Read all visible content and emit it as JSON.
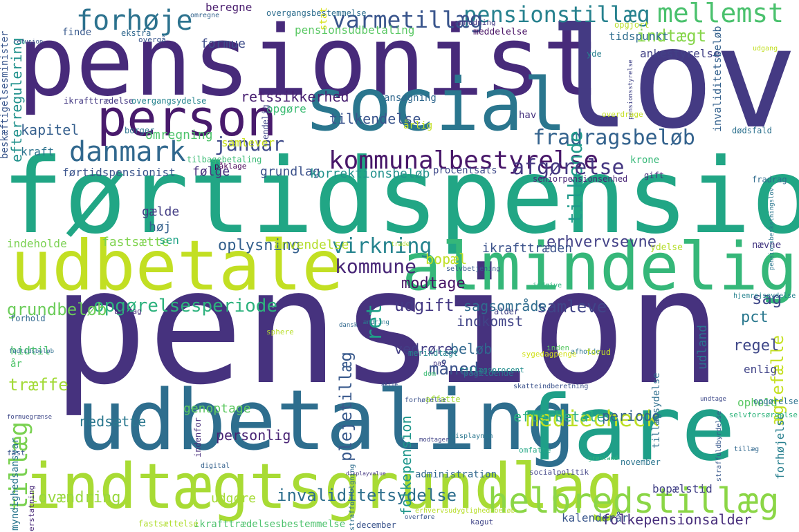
{
  "wordcloud": {
    "words": [
      {
        "text": "pension",
        "color": "#46327e"
      },
      {
        "text": "førtidspension",
        "color": "#21a685"
      },
      {
        "text": "pensionist",
        "color": "#472a7a"
      },
      {
        "text": "lov",
        "color": "#443a83"
      },
      {
        "text": "udbetaling",
        "color": "#2e6e8e"
      },
      {
        "text": "fare",
        "color": "#1f9f88"
      },
      {
        "text": "social",
        "color": "#2a768e"
      },
      {
        "text": "udbetale",
        "color": "#c2df23"
      },
      {
        "text": "almindelig",
        "color": "#35b779"
      },
      {
        "text": "indtægtsgrundlag",
        "color": "#a8db34"
      },
      {
        "text": "person",
        "color": "#481a6c"
      },
      {
        "text": "helbredstillæg",
        "color": "#8bd646"
      },
      {
        "text": "danmark",
        "color": "#31688e"
      },
      {
        "text": "forhøje",
        "color": "#2c728e"
      },
      {
        "text": "kommunalbestyrelse",
        "color": "#481769"
      },
      {
        "text": "mellemst",
        "color": "#4ac16d"
      },
      {
        "text": "pensionstillæg",
        "color": "#26818e"
      },
      {
        "text": "varmetillæg",
        "color": "#39558c"
      },
      {
        "text": "fradragsbeløb",
        "color": "#33628d"
      },
      {
        "text": "tilkende",
        "color": "#1f9a8a"
      },
      {
        "text": "afgørelse",
        "color": "#453781"
      },
      {
        "text": "indtægt",
        "color": "#86d549"
      },
      {
        "text": "januar",
        "color": "#3e4a89"
      },
      {
        "text": "virkning",
        "color": "#25838e"
      },
      {
        "text": "kommune",
        "color": "#482677"
      },
      {
        "text": "opgørelsesperiode",
        "color": "#2db27d"
      },
      {
        "text": "grundbeløb",
        "color": "#6ccd5a"
      },
      {
        "text": "tillæg",
        "color": "#7ad151"
      },
      {
        "text": "plejetillæg",
        "color": "#38598c"
      },
      {
        "text": "ret",
        "color": "#1fa088"
      },
      {
        "text": "udgift",
        "color": "#443983"
      },
      {
        "text": "samleve",
        "color": "#404588"
      },
      {
        "text": "sag",
        "color": "#3f4889"
      },
      {
        "text": "mediecheck",
        "color": "#bddf26"
      },
      {
        "text": "invaliditetsydelse",
        "color": "#2e6f8e"
      },
      {
        "text": "lovændring",
        "color": "#98d83e"
      },
      {
        "text": "måned",
        "color": "#3b528b"
      },
      {
        "text": "ægtefælle",
        "color": "#c5e021"
      },
      {
        "text": "modtage",
        "color": "#471365"
      },
      {
        "text": "sagsområde",
        "color": "#2f6c8e"
      },
      {
        "text": "erhvervsevne",
        "color": "#424086"
      },
      {
        "text": "bopæl",
        "color": "#c0df25"
      },
      {
        "text": "efterregulering",
        "color": "#21918c"
      },
      {
        "text": "oplysning",
        "color": "#34608d"
      },
      {
        "text": "fastsætte",
        "color": "#7fd34e"
      },
      {
        "text": "træffe",
        "color": "#a2da37"
      },
      {
        "text": "folkepension",
        "color": "#1f968b"
      },
      {
        "text": "efterbetale",
        "color": "#28ae80"
      },
      {
        "text": "regel",
        "color": "#3f4788"
      },
      {
        "text": "pct",
        "color": "#2a788e"
      },
      {
        "text": "beløb",
        "color": "#31678e"
      },
      {
        "text": "vedrøre",
        "color": "#433e85"
      },
      {
        "text": "folkepensionsalder",
        "color": "#472d7b"
      },
      {
        "text": "personlig",
        "color": "#482374"
      },
      {
        "text": "nedsætte",
        "color": "#2a778e"
      },
      {
        "text": "genoptage",
        "color": "#5ec962"
      },
      {
        "text": "periode",
        "color": "#33638d"
      },
      {
        "text": "tilkendelse",
        "color": "#3a548c"
      },
      {
        "text": "retssikkerhed",
        "color": "#482071"
      },
      {
        "text": "indkomst",
        "color": "#414487"
      },
      {
        "text": "høj",
        "color": "#34618d"
      },
      {
        "text": "gælde",
        "color": "#433d84"
      },
      {
        "text": "følge",
        "color": "#472f7d"
      },
      {
        "text": "grundlag",
        "color": "#3b518b"
      },
      {
        "text": "kapitel",
        "color": "#355f8d"
      },
      {
        "text": "omregning",
        "color": "#4ec36b"
      },
      {
        "text": "kraft",
        "color": "#2c738e"
      },
      {
        "text": "førtidspensionist",
        "color": "#3a548c"
      },
      {
        "text": "formue",
        "color": "#3e4c8a"
      },
      {
        "text": "beregne",
        "color": "#481b6d"
      },
      {
        "text": "korrektionsbeløb",
        "color": "#21918c"
      },
      {
        "text": "ikrafttræden",
        "color": "#3b528b"
      },
      {
        "text": "anvendelse",
        "color": "#b5de2b"
      },
      {
        "text": "pensionsudbetaling",
        "color": "#5ac864"
      },
      {
        "text": "tidspunkt",
        "color": "#2e6d8e"
      },
      {
        "text": "ankestyrelse",
        "color": "#424186"
      },
      {
        "text": "udland",
        "color": "#2c718e"
      },
      {
        "text": "enlig",
        "color": "#404387"
      },
      {
        "text": "ophold",
        "color": "#5ac864"
      },
      {
        "text": "udgøre",
        "color": "#a5db36"
      },
      {
        "text": "samlever",
        "color": "#c8e020"
      },
      {
        "text": "opgøre",
        "color": "#3dbc74"
      },
      {
        "text": "sen",
        "color": "#20a386"
      },
      {
        "text": "bopælstid",
        "color": "#424186"
      },
      {
        "text": "forhøjelse",
        "color": "#277f8e"
      },
      {
        "text": "invaliditetsbeløb",
        "color": "#34618d"
      },
      {
        "text": "beskæftigelsesminister",
        "color": "#39568c"
      },
      {
        "text": "indeholde",
        "color": "#7ad151"
      },
      {
        "text": "hidtil",
        "color": "#4ac16d"
      },
      {
        "text": "år",
        "color": "#50c46a"
      },
      {
        "text": "kalenderår",
        "color": "#39568c"
      },
      {
        "text": "administration",
        "color": "#31688e"
      },
      {
        "text": "myndighedsansvar",
        "color": "#2a768e"
      },
      {
        "text": "tillægsydelse",
        "color": "#2e6f8e"
      },
      {
        "text": "ikrafttrædelsesbestemmelse",
        "color": "#4cc26c"
      },
      {
        "text": "fastsættelse",
        "color": "#b0dd2f"
      },
      {
        "text": "december",
        "color": "#3a548c"
      },
      {
        "text": "november",
        "color": "#2b758e"
      },
      {
        "text": "stat",
        "color": "#d8e219"
      },
      {
        "text": "finde",
        "color": "#38598c"
      },
      {
        "text": "ekstra",
        "color": "#31688e"
      },
      {
        "text": "meddelelse",
        "color": "#471063"
      },
      {
        "text": "opgjort",
        "color": "#b8de29"
      },
      {
        "text": "yde",
        "color": "#277f8e"
      },
      {
        "text": "årlig",
        "color": "#c2df23"
      },
      {
        "text": "ansøgning",
        "color": "#31688e"
      },
      {
        "text": "krone",
        "color": "#37b878"
      },
      {
        "text": "procentsats",
        "color": "#3e4989"
      },
      {
        "text": "seniorpensionsenhed",
        "color": "#482475"
      },
      {
        "text": "tilbagebetaling",
        "color": "#3bbb75"
      },
      {
        "text": "borger",
        "color": "#2b748e"
      },
      {
        "text": "hav",
        "color": "#46337e"
      },
      {
        "text": "ydelse",
        "color": "#b5de2b"
      },
      {
        "text": "nævne",
        "color": "#453882"
      },
      {
        "text": "dødsfald",
        "color": "#2c718e"
      },
      {
        "text": "fradrag",
        "color": "#2f6b8e"
      },
      {
        "text": "gift",
        "color": "#472c7a"
      },
      {
        "text": "overgå",
        "color": "#39568c"
      },
      {
        "text": "overgangsbestemmelse",
        "color": "#2e6e8e"
      },
      {
        "text": "refusion",
        "color": "#3a538b"
      },
      {
        "text": "omregne",
        "color": "#33638d"
      },
      {
        "text": "anmodning",
        "color": "#453882"
      },
      {
        "text": "udgang",
        "color": "#c2df23"
      },
      {
        "text": "pensionsbeskatningslov",
        "color": "#2a768e"
      },
      {
        "text": "opgørelse",
        "color": "#2c718e"
      },
      {
        "text": "selvforsørgelse",
        "color": "#2fb47c"
      },
      {
        "text": "ikrafttrædelse",
        "color": "#443983"
      },
      {
        "text": "overgangsydelse",
        "color": "#25848e"
      },
      {
        "text": "endelig",
        "color": "#404588"
      },
      {
        "text": "påklage",
        "color": "#440154"
      },
      {
        "text": "forhold",
        "color": "#31688e"
      },
      {
        "text": "bidrag",
        "color": "#46307e"
      },
      {
        "text": "merindtægt",
        "color": "#25848e"
      },
      {
        "text": "pas",
        "color": "#453882"
      },
      {
        "text": "alder",
        "color": "#414487"
      },
      {
        "text": "inden",
        "color": "#5ac864"
      },
      {
        "text": "afholde",
        "color": "#2b758e"
      },
      {
        "text": "pågældende",
        "color": "#2c718e"
      },
      {
        "text": "sygedagpenge",
        "color": "#d2e21b"
      },
      {
        "text": "forud",
        "color": "#c2df23"
      },
      {
        "text": "erstatning",
        "color": "#482878"
      },
      {
        "text": "fast",
        "color": "#3a548c"
      },
      {
        "text": "formuegrænse",
        "color": "#3f4889"
      },
      {
        "text": "tillægsprocent",
        "color": "#228d8d"
      },
      {
        "text": "omfatte",
        "color": "#22a785"
      },
      {
        "text": "socialpolitik",
        "color": "#414487"
      },
      {
        "text": "fødtidsbeløb",
        "color": "#2e6f8e"
      },
      {
        "text": "dom",
        "color": "#3dbc74"
      },
      {
        "text": "affatte",
        "color": "#a2da37"
      },
      {
        "text": "aktie",
        "color": "#3b528b"
      },
      {
        "text": "indgive",
        "color": "#2fb47c"
      },
      {
        "text": "selvbetjening",
        "color": "#38598c"
      },
      {
        "text": "hjemrejseydelse",
        "color": "#26828e"
      },
      {
        "text": "træde",
        "color": "#addc30"
      },
      {
        "text": "digital",
        "color": "#34618d"
      },
      {
        "text": "indenfor",
        "color": "#472d7b"
      },
      {
        "text": "displaynam",
        "color": "#2a768e"
      },
      {
        "text": "overføre",
        "color": "#39568c"
      },
      {
        "text": "strafforfølgning",
        "color": "#2e6e8e"
      },
      {
        "text": "erhvervsudygtighedsbeløb",
        "color": "#b8de29"
      },
      {
        "text": "ændring",
        "color": "#2a768e"
      },
      {
        "text": "dansk",
        "color": "#31688e"
      },
      {
        "text": "sphere",
        "color": "#b8de29"
      },
      {
        "text": "kagut",
        "color": "#404588"
      },
      {
        "text": "displayvalue",
        "color": "#453882"
      },
      {
        "text": "modtager",
        "color": "#414487"
      },
      {
        "text": "tillæg",
        "color": "#31688e"
      },
      {
        "text": "grønland",
        "color": "#2fb47c"
      },
      {
        "text": "forhøjelse",
        "color": "#3b528b"
      },
      {
        "text": "pensionsstyrelse",
        "color": "#414487"
      },
      {
        "text": "overdrage",
        "color": "#c2df23"
      },
      {
        "text": "undtage",
        "color": "#3e4989"
      },
      {
        "text": "skatteindberetning",
        "color": "#3b528b"
      },
      {
        "text": "straffuldbyrdelse",
        "color": "#38598c"
      }
    ]
  }
}
